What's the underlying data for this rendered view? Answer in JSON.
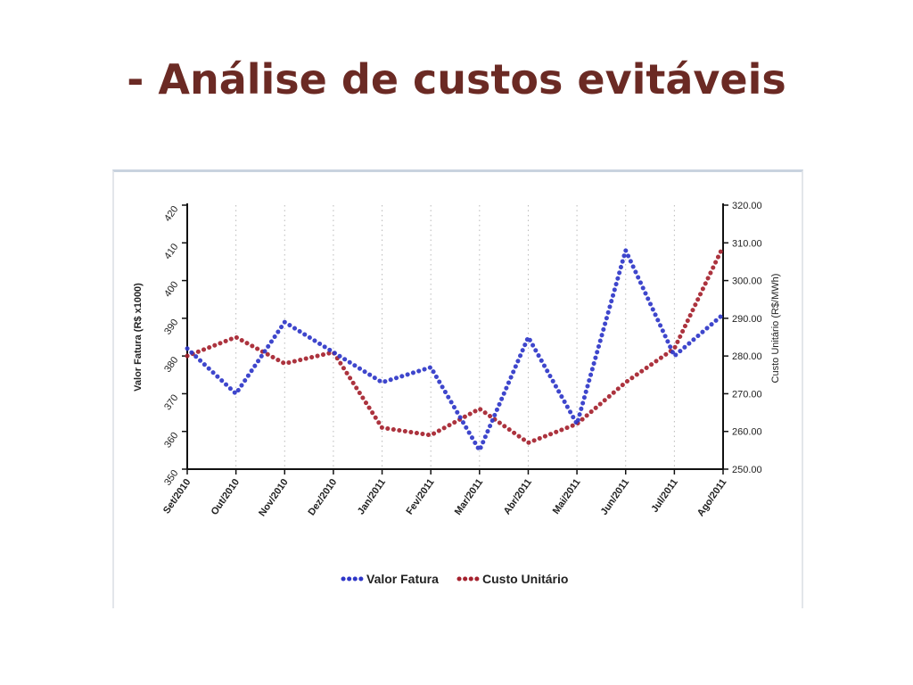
{
  "slide": {
    "title": "- Análise de custos evitáveis"
  },
  "colors": {
    "title": "#6b2a24",
    "series_blue": "#2e36c8",
    "series_red": "#a5222e",
    "grid": "#b9b9b9"
  },
  "chart_data": {
    "type": "line",
    "title": "",
    "categories": [
      "Set/2010",
      "Out/2010",
      "Nov/2010",
      "Dez/2010",
      "Jan/2011",
      "Fev/2011",
      "Mar/2011",
      "Abr/2011",
      "Mai/2011",
      "Jun/2011",
      "Jul/2011",
      "Ago/2011"
    ],
    "series": [
      {
        "name": "Valor Fatura",
        "axis": "left",
        "color": "#2e36c8",
        "values": [
          382,
          370,
          389,
          381,
          373,
          377,
          355,
          385,
          362,
          408,
          380,
          391
        ]
      },
      {
        "name": "Custo Unitário",
        "axis": "right",
        "color": "#a5222e",
        "values": [
          280,
          285,
          278,
          281,
          261,
          259,
          266,
          257,
          262,
          273,
          282,
          309
        ]
      }
    ],
    "y_left": {
      "label": "Valor Fatura (R$ x1000)",
      "min": 350,
      "max": 420,
      "ticks": [
        "350",
        "360",
        "370",
        "380",
        "390",
        "400",
        "410",
        "420"
      ]
    },
    "y_right": {
      "label": "Custo Unitário (R$/MWh)",
      "min": 250,
      "max": 320,
      "ticks": [
        "250.00",
        "260.00",
        "270.00",
        "280.00",
        "290.00",
        "300.00",
        "310.00",
        "320.00"
      ]
    },
    "grid": "vertical dotted",
    "legend": "bottom-center"
  }
}
